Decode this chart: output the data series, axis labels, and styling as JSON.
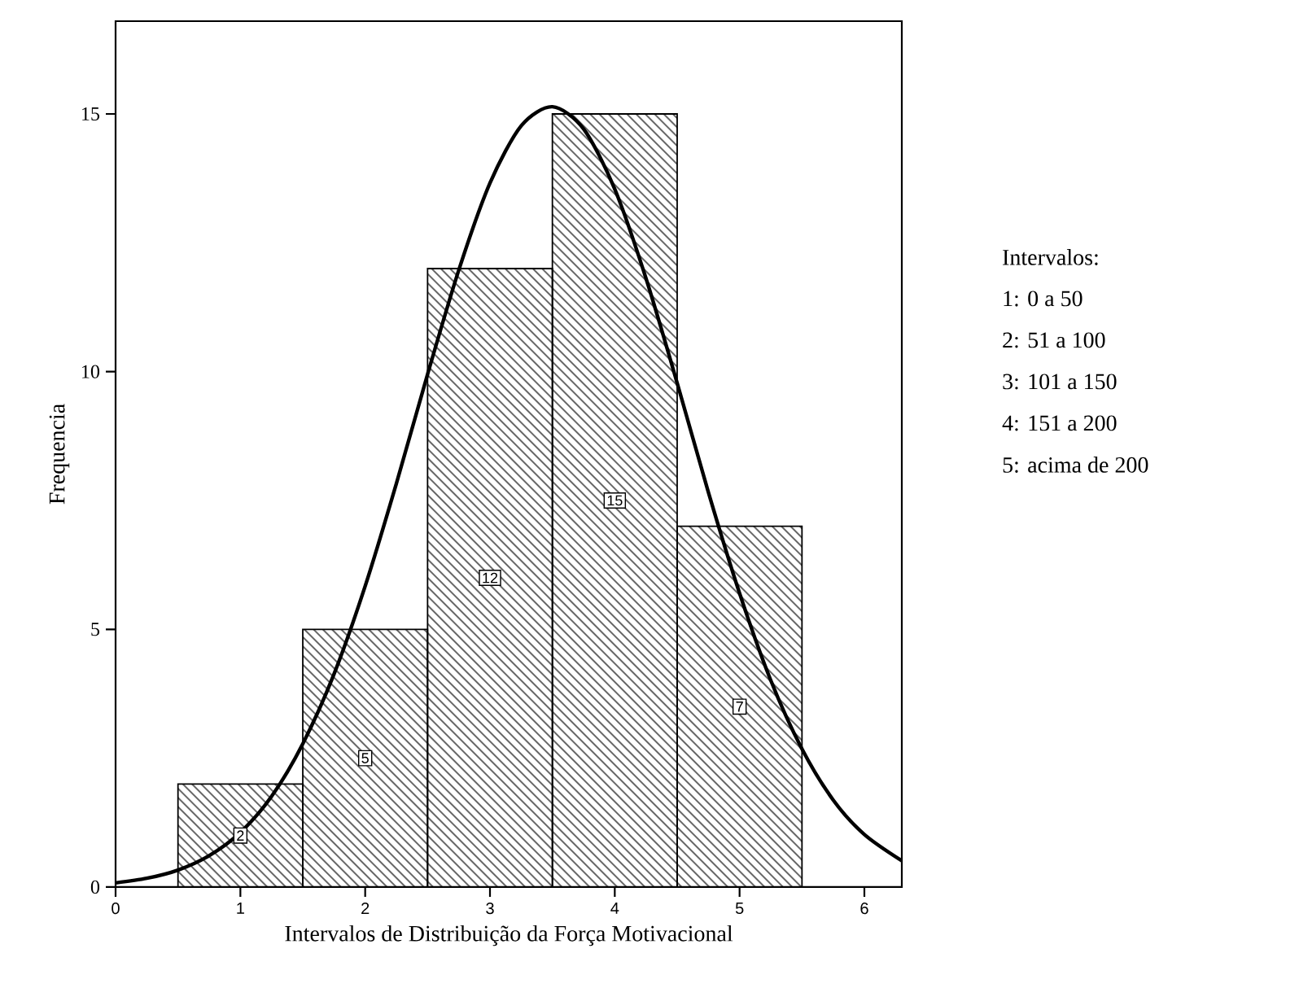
{
  "chart_data": {
    "type": "histogram",
    "xlabel": "Intervalos de Distribuição da Força Motivacional",
    "ylabel": "Frequencia",
    "bins": [
      0.5,
      1.5,
      2.5,
      3.5,
      4.5,
      5.5
    ],
    "values": [
      2,
      5,
      12,
      15,
      7
    ],
    "color": "#000000",
    "value_labels": [
      "2",
      "5",
      "12",
      "15",
      "7"
    ],
    "xlim": [
      0,
      6.3
    ],
    "ylim": [
      0,
      16.8
    ],
    "xticks": [
      0,
      1,
      2,
      3,
      4,
      5,
      6
    ],
    "yticks": [
      0,
      5,
      10,
      15
    ],
    "series": [
      {
        "type": "line",
        "color": "#000000",
        "x": [
          0,
          0.25,
          0.5,
          0.75,
          1,
          1.25,
          1.5,
          1.75,
          2,
          2.25,
          2.5,
          2.75,
          3,
          3.25,
          3.5,
          3.75,
          4,
          4.25,
          4.5,
          4.75,
          5,
          5.25,
          5.5,
          5.75,
          6,
          6.3
        ],
        "values": [
          0.08,
          0.17,
          0.33,
          0.61,
          1.06,
          1.76,
          2.78,
          4.13,
          5.84,
          7.83,
          9.95,
          11.97,
          13.66,
          14.77,
          15.14,
          14.71,
          13.54,
          11.81,
          9.78,
          7.66,
          5.7,
          4.01,
          2.68,
          1.69,
          1.02,
          0.51
        ]
      }
    ],
    "annotations": [
      "Intervalos:",
      "1: 0 a 50",
      "2: 51 a 100",
      "3: 101 a 150",
      "4: 151 a 200",
      "5: acima de 200"
    ]
  }
}
